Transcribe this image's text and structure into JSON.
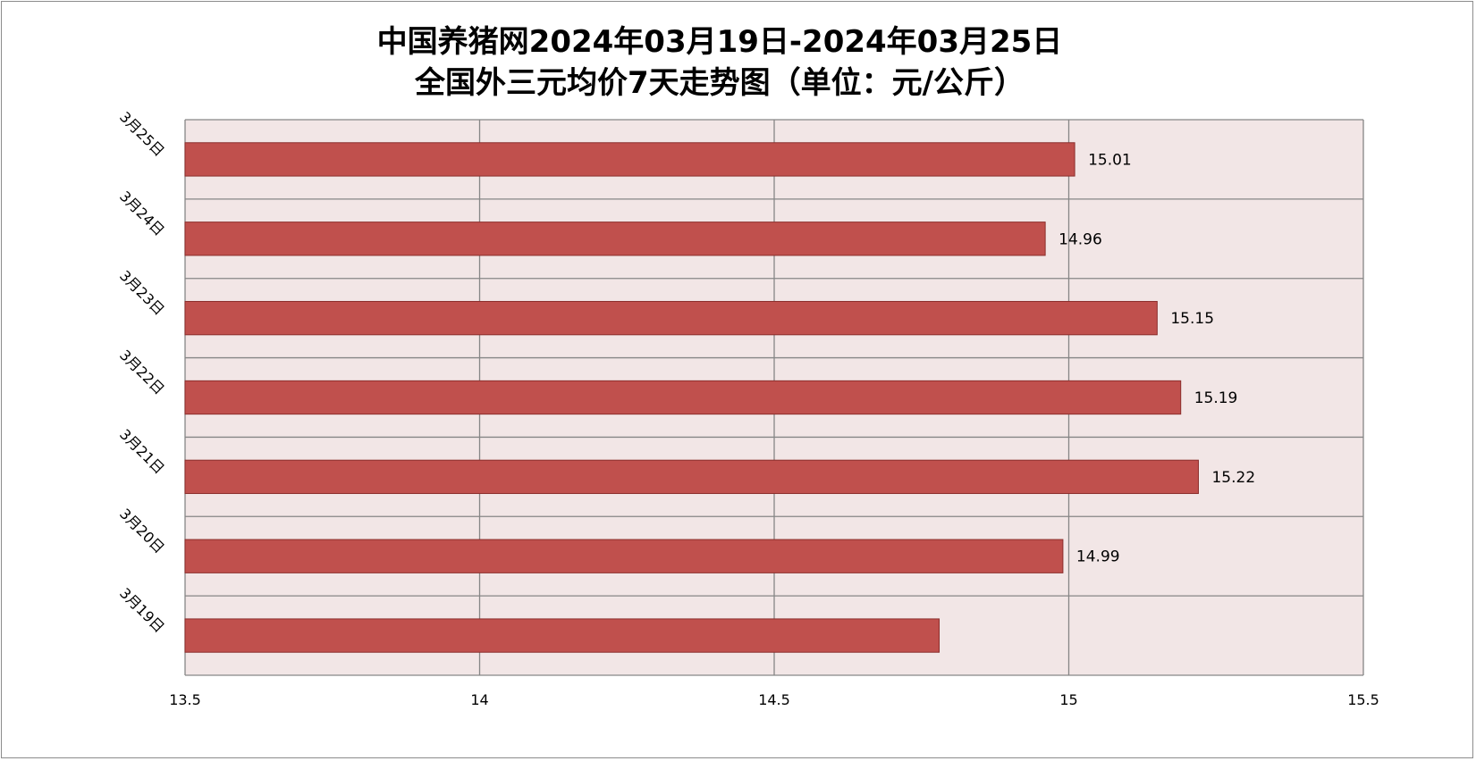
{
  "chart_data": {
    "type": "bar",
    "orientation": "horizontal",
    "title_line1": "中国养猪网2024年03月19日-2024年03月25日",
    "title_line2": "全国外三元均价7天走势图（单位：元/公斤）",
    "categories": [
      "3月25日",
      "3月24日",
      "3月23日",
      "3月22日",
      "3月21日",
      "3月20日",
      "3月19日"
    ],
    "values": [
      15.01,
      14.96,
      15.15,
      15.19,
      15.22,
      14.99,
      14.78
    ],
    "data_labels": [
      "15.01",
      "14.96",
      "15.15",
      "15.19",
      "15.22",
      "14.99",
      ""
    ],
    "x_ticks": [
      "13.5",
      "14",
      "14.5",
      "15",
      "15.5"
    ],
    "xlim": [
      13.5,
      15.5
    ],
    "grid": true,
    "legend": "none",
    "bar_color": "#c0504d",
    "bar_border_color": "#8b2e2c",
    "plot_background": "#f2e6e6",
    "grid_color": "#868686"
  }
}
